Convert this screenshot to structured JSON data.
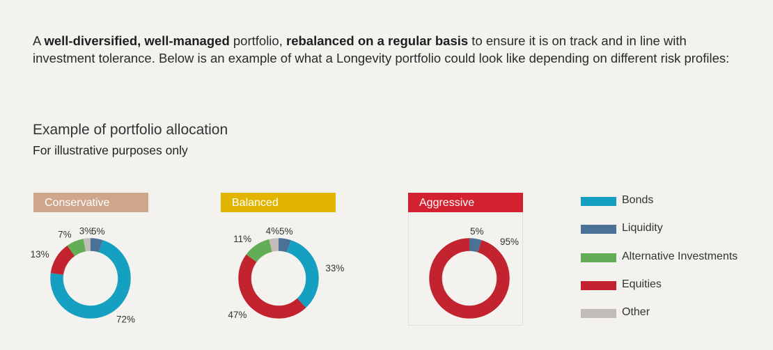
{
  "intro": {
    "p1": "A ",
    "b1": "well-diversified, well-managed",
    "p2": " portfolio, ",
    "b2": "rebalanced on a regular basis",
    "p3": " to ensure it is on track and in line with investment tolerance. Below is an example of what a Longevity portfolio could look like depending on different risk profiles:"
  },
  "heading": "Example of portfolio allocation",
  "subheading": "For illustrative purposes only",
  "colors": {
    "Bonds": "#159fc0",
    "Liquidity": "#4b7296",
    "Alternative Investments": "#62ad56",
    "Equities": "#c2232e",
    "Other": "#c1bcb7",
    "conservative_label": "#cea68b",
    "balanced_label": "#e1b500",
    "aggressive_label": "#d42130"
  },
  "legend": [
    "Bonds",
    "Liquidity",
    "Alternative Investments",
    "Equities",
    "Other"
  ],
  "chart_data": [
    {
      "type": "pie",
      "subtype": "donut",
      "title": "Conservative",
      "categories": [
        "Liquidity",
        "Bonds",
        "Equities",
        "Alternative Investments",
        "Other"
      ],
      "values": [
        5,
        72,
        13,
        7,
        3
      ],
      "labels": [
        "5%",
        "72%",
        "13%",
        "7%",
        "3%"
      ]
    },
    {
      "type": "pie",
      "subtype": "donut",
      "title": "Balanced",
      "categories": [
        "Liquidity",
        "Bonds",
        "Equities",
        "Alternative Investments",
        "Other"
      ],
      "values": [
        5,
        33,
        47,
        11,
        4
      ],
      "labels": [
        "5%",
        "33%",
        "47%",
        "11%",
        "4%"
      ]
    },
    {
      "type": "pie",
      "subtype": "donut",
      "title": "Aggressive",
      "categories": [
        "Liquidity",
        "Equities"
      ],
      "values": [
        5,
        95
      ],
      "labels": [
        "5%",
        "95%"
      ]
    }
  ]
}
